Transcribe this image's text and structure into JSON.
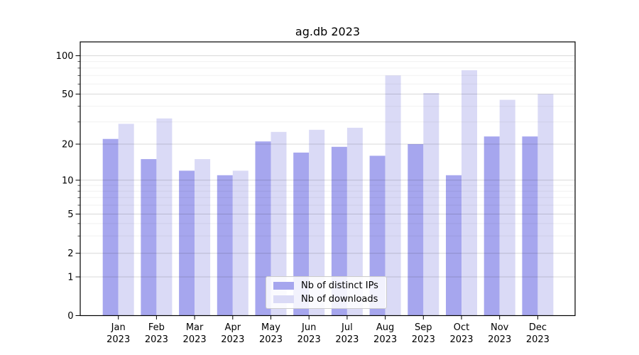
{
  "chart_data": {
    "type": "bar",
    "title": "ag.db 2023",
    "months": [
      "Jan",
      "Feb",
      "Mar",
      "Apr",
      "May",
      "Jun",
      "Jul",
      "Aug",
      "Sep",
      "Oct",
      "Nov",
      "Dec"
    ],
    "year": "2023",
    "series": [
      {
        "name": "Nb of distinct IPs",
        "color": "#a6a6ee",
        "values": [
          22,
          15,
          12,
          11,
          21,
          17,
          19,
          16,
          20,
          11,
          23,
          23
        ]
      },
      {
        "name": "Nb of downloads",
        "color": "#dadaf6",
        "values": [
          29,
          32,
          15,
          12,
          25,
          26,
          27,
          70,
          51,
          77,
          45,
          50
        ]
      }
    ],
    "y_scale": "symlog",
    "y_ticks": [
      0,
      1,
      2,
      5,
      10,
      20,
      50,
      100
    ],
    "y_minor_ticks": [
      3,
      4,
      6,
      7,
      8,
      9,
      30,
      40,
      60,
      70,
      80,
      90
    ],
    "ylim": [
      0,
      128
    ],
    "grid": "major+minor",
    "legend_position": "lower center"
  },
  "colors": {
    "axis": "#000000",
    "text": "#000000",
    "grid_major": "rgba(0,0,0,0.15)",
    "grid_minor": "rgba(0,0,0,0.055)",
    "legend_border": "#cccccc",
    "legend_bg": "rgba(255,255,255,0.85)",
    "background": "#ffffff"
  }
}
